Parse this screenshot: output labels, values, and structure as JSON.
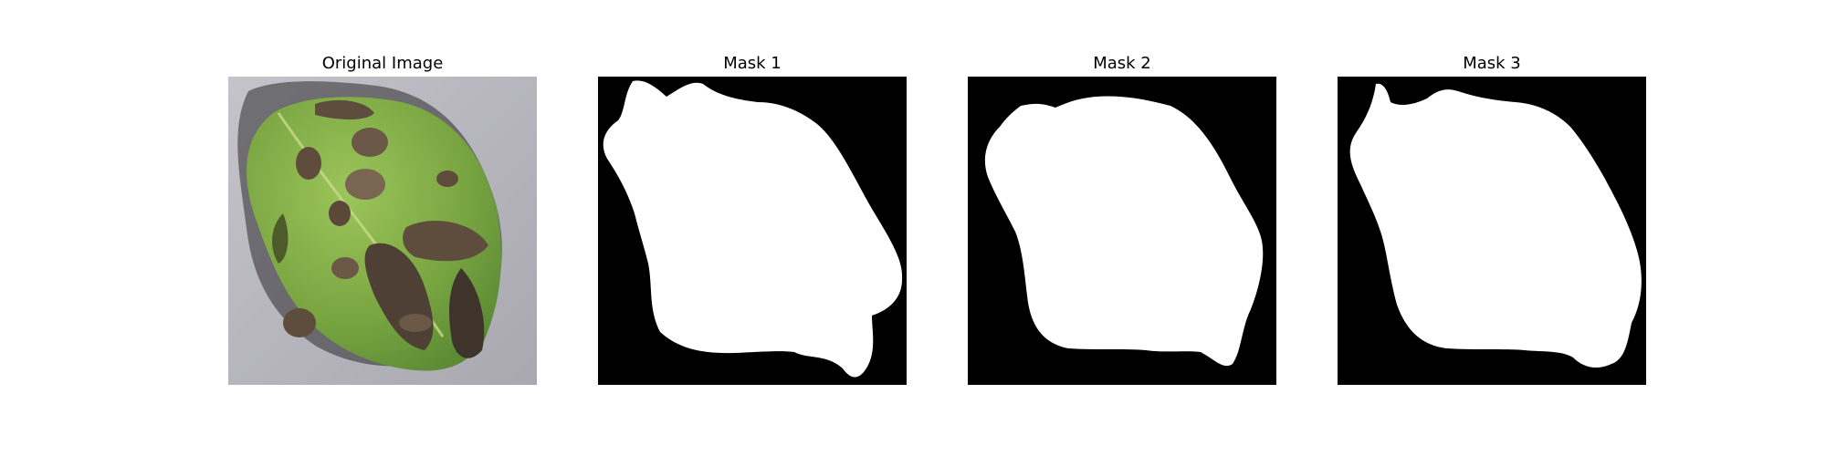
{
  "figure": {
    "panels": [
      {
        "title": "Original Image",
        "content": "leaf-photo"
      },
      {
        "title": "Mask 1",
        "content": "binary-mask"
      },
      {
        "title": "Mask 2",
        "content": "binary-mask"
      },
      {
        "title": "Mask 3",
        "content": "binary-mask"
      }
    ]
  },
  "colors": {
    "mask_background": "#000000",
    "mask_foreground": "#ffffff",
    "photo_background": "#b4b3bb",
    "leaf_green": "#7da944",
    "lesion_brown": "#5e4d3d"
  }
}
